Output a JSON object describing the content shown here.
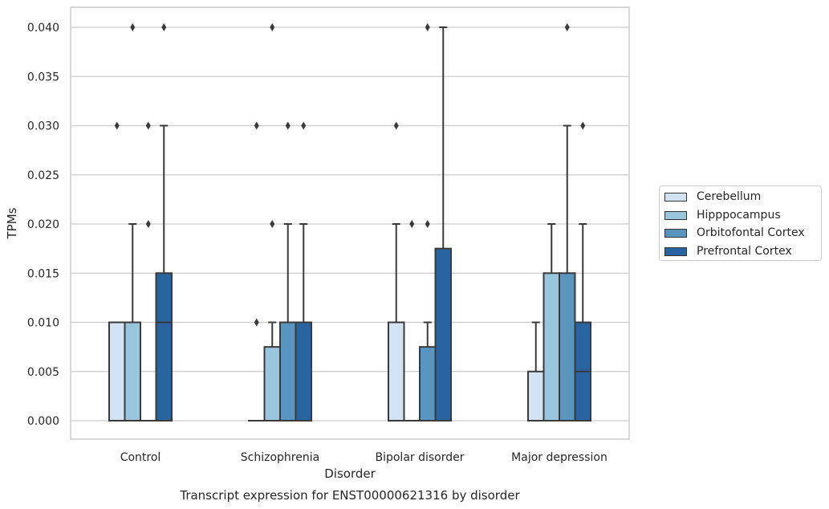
{
  "chart_data": {
    "type": "box",
    "title": "Transcript expression for ENST00000621316 by disorder",
    "xlabel": "Disorder",
    "ylabel": "TPMs",
    "ylim": [
      -0.002,
      0.042
    ],
    "yticks": [
      "0.000",
      "0.005",
      "0.010",
      "0.015",
      "0.020",
      "0.025",
      "0.030",
      "0.035",
      "0.040"
    ],
    "categories": [
      "Control",
      "Schizophrenia",
      "Bipolar disorder",
      "Major depression"
    ],
    "grid": true,
    "legend_position": "right",
    "series": [
      {
        "name": "Cerebellum",
        "color": "#d3e3f3",
        "boxes": [
          {
            "q1": 0.0,
            "median": 0.0,
            "q3": 0.01,
            "whisker_low": 0.0,
            "whisker_high": 0.01,
            "outliers": [
              0.03
            ]
          },
          {
            "q1": 0.0,
            "median": 0.0,
            "q3": 0.0,
            "whisker_low": 0.0,
            "whisker_high": 0.0,
            "outliers": [
              0.01,
              0.03
            ]
          },
          {
            "q1": 0.0,
            "median": 0.0,
            "q3": 0.01,
            "whisker_low": 0.0,
            "whisker_high": 0.02,
            "outliers": [
              0.03
            ]
          },
          {
            "q1": 0.0,
            "median": 0.0,
            "q3": 0.005,
            "whisker_low": 0.0,
            "whisker_high": 0.01,
            "outliers": []
          }
        ]
      },
      {
        "name": "Hipppocampus",
        "color": "#9ac5de",
        "boxes": [
          {
            "q1": 0.0,
            "median": 0.0,
            "q3": 0.01,
            "whisker_low": 0.0,
            "whisker_high": 0.02,
            "outliers": [
              0.04
            ]
          },
          {
            "q1": 0.0,
            "median": 0.0,
            "q3": 0.0075,
            "whisker_low": 0.0,
            "whisker_high": 0.01,
            "outliers": [
              0.02,
              0.04
            ]
          },
          {
            "q1": 0.0,
            "median": 0.0,
            "q3": 0.0,
            "whisker_low": 0.0,
            "whisker_high": 0.0,
            "outliers": [
              0.02
            ]
          },
          {
            "q1": 0.0,
            "median": 0.0,
            "q3": 0.015,
            "whisker_low": 0.0,
            "whisker_high": 0.02,
            "outliers": []
          }
        ]
      },
      {
        "name": "Orbitofontal Cortex",
        "color": "#5a95c0",
        "boxes": [
          {
            "q1": 0.0,
            "median": 0.0,
            "q3": 0.0,
            "whisker_low": 0.0,
            "whisker_high": 0.0,
            "outliers": [
              0.02,
              0.03
            ]
          },
          {
            "q1": 0.0,
            "median": 0.0,
            "q3": 0.01,
            "whisker_low": 0.0,
            "whisker_high": 0.02,
            "outliers": [
              0.03
            ]
          },
          {
            "q1": 0.0,
            "median": 0.0,
            "q3": 0.0075,
            "whisker_low": 0.0,
            "whisker_high": 0.01,
            "outliers": [
              0.02,
              0.04
            ]
          },
          {
            "q1": 0.0,
            "median": 0.0,
            "q3": 0.015,
            "whisker_low": 0.0,
            "whisker_high": 0.03,
            "outliers": [
              0.04
            ]
          }
        ]
      },
      {
        "name": "Prefrontal Cortex",
        "color": "#2963a0",
        "boxes": [
          {
            "q1": 0.0,
            "median": 0.01,
            "q3": 0.015,
            "whisker_low": 0.0,
            "whisker_high": 0.03,
            "outliers": [
              0.04
            ]
          },
          {
            "q1": 0.0,
            "median": 0.0,
            "q3": 0.01,
            "whisker_low": 0.0,
            "whisker_high": 0.02,
            "outliers": [
              0.03
            ]
          },
          {
            "q1": 0.0,
            "median": 0.0,
            "q3": 0.0175,
            "whisker_low": 0.0,
            "whisker_high": 0.04,
            "outliers": []
          },
          {
            "q1": 0.0,
            "median": 0.005,
            "q3": 0.01,
            "whisker_low": 0.0,
            "whisker_high": 0.02,
            "outliers": [
              0.03
            ]
          }
        ]
      }
    ]
  }
}
